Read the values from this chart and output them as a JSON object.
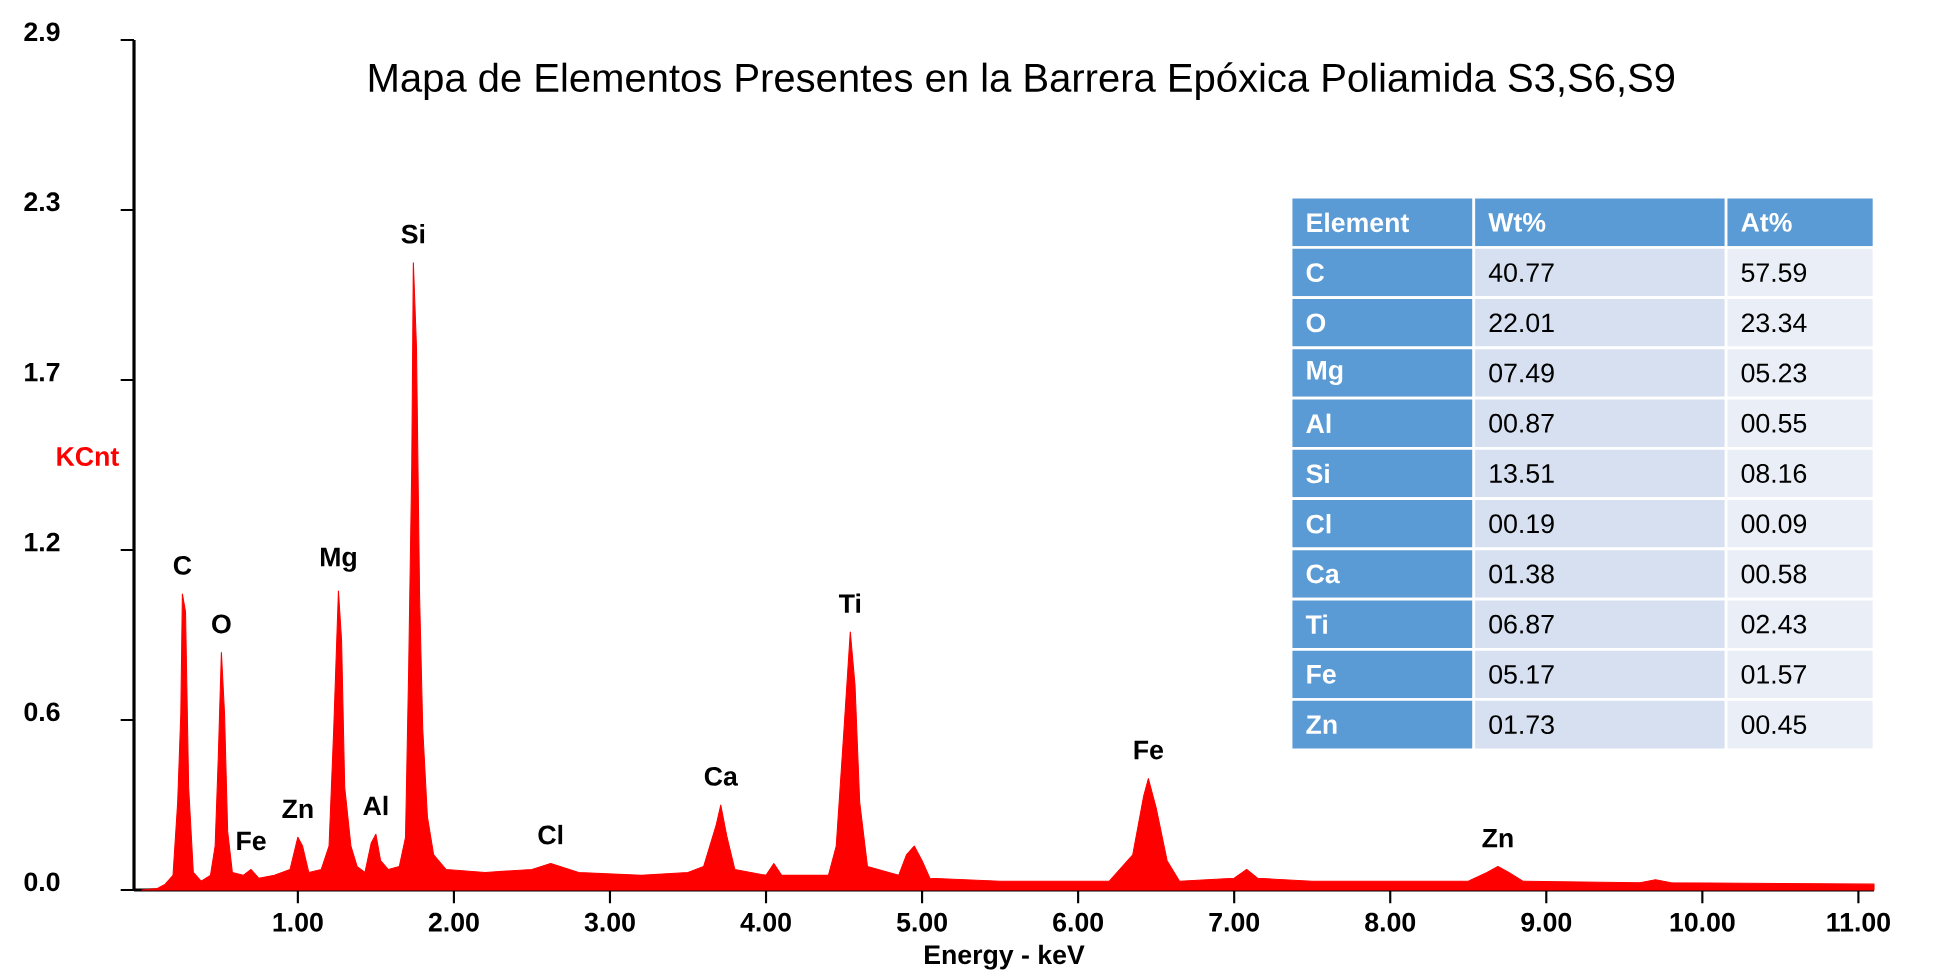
{
  "chart_data": {
    "type": "area",
    "title": "Mapa de Elementos Presentes en la Barrera Epóxica Poliamida S3,S6,S9",
    "xlabel": "Energy - keV",
    "ylabel": "KCnt",
    "color": "#ff0000",
    "x": [
      0,
      0.1,
      0.15,
      0.2,
      0.23,
      0.25,
      0.26,
      0.28,
      0.3,
      0.33,
      0.38,
      0.44,
      0.47,
      0.49,
      0.51,
      0.53,
      0.55,
      0.58,
      0.65,
      0.7,
      0.75,
      0.85,
      0.95,
      1.0,
      1.03,
      1.07,
      1.15,
      1.2,
      1.23,
      1.26,
      1.28,
      1.3,
      1.34,
      1.38,
      1.43,
      1.47,
      1.5,
      1.53,
      1.58,
      1.65,
      1.69,
      1.71,
      1.73,
      1.74,
      1.76,
      1.78,
      1.8,
      1.83,
      1.87,
      1.95,
      2.2,
      2.5,
      2.62,
      2.8,
      3.2,
      3.5,
      3.6,
      3.68,
      3.71,
      3.75,
      3.8,
      4.0,
      4.05,
      4.1,
      4.4,
      4.45,
      4.5,
      4.54,
      4.57,
      4.6,
      4.65,
      4.85,
      4.9,
      4.95,
      5.0,
      5.05,
      5.5,
      6.2,
      6.35,
      6.42,
      6.45,
      6.5,
      6.57,
      6.65,
      7.0,
      7.08,
      7.15,
      7.5,
      8.5,
      8.62,
      8.69,
      8.76,
      8.85,
      9.6,
      9.7,
      9.8,
      11.1
    ],
    "values": [
      0,
      0.005,
      0.02,
      0.05,
      0.3,
      0.6,
      1.01,
      0.95,
      0.35,
      0.06,
      0.03,
      0.05,
      0.15,
      0.45,
      0.81,
      0.6,
      0.2,
      0.06,
      0.05,
      0.07,
      0.04,
      0.05,
      0.07,
      0.18,
      0.15,
      0.06,
      0.07,
      0.15,
      0.55,
      1.02,
      0.85,
      0.35,
      0.15,
      0.08,
      0.06,
      0.16,
      0.19,
      0.1,
      0.07,
      0.08,
      0.18,
      0.75,
      1.45,
      2.14,
      1.85,
      1.0,
      0.55,
      0.25,
      0.12,
      0.07,
      0.06,
      0.07,
      0.09,
      0.06,
      0.05,
      0.06,
      0.08,
      0.22,
      0.29,
      0.18,
      0.07,
      0.05,
      0.09,
      0.05,
      0.05,
      0.15,
      0.55,
      0.88,
      0.7,
      0.3,
      0.08,
      0.05,
      0.12,
      0.15,
      0.1,
      0.04,
      0.03,
      0.03,
      0.12,
      0.32,
      0.38,
      0.28,
      0.1,
      0.03,
      0.04,
      0.07,
      0.04,
      0.03,
      0.03,
      0.06,
      0.08,
      0.06,
      0.03,
      0.025,
      0.035,
      0.025,
      0.02
    ],
    "xlim": [
      -0.05,
      11.1
    ],
    "ylim": [
      0,
      2.9
    ],
    "xticks": [
      {
        "value": 1,
        "label": "1.00"
      },
      {
        "value": 2,
        "label": "2.00"
      },
      {
        "value": 3,
        "label": "3.00"
      },
      {
        "value": 4,
        "label": "4.00"
      },
      {
        "value": 5,
        "label": "5.00"
      },
      {
        "value": 6,
        "label": "6.00"
      },
      {
        "value": 7,
        "label": "7.00"
      },
      {
        "value": 8,
        "label": "8.00"
      },
      {
        "value": 9,
        "label": "9.00"
      },
      {
        "value": 10,
        "label": "10.00"
      },
      {
        "value": 11,
        "label": "11.00"
      }
    ],
    "yticks": [
      {
        "value": 0,
        "label": "0.0"
      },
      {
        "value": 0.58,
        "label": "0.6"
      },
      {
        "value": 1.16,
        "label": "1.2"
      },
      {
        "value": 1.74,
        "label": "1.7"
      },
      {
        "value": 2.32,
        "label": "2.3"
      },
      {
        "value": 2.9,
        "label": "2.9"
      }
    ],
    "annotations": [
      {
        "text": "C",
        "x": 0.26,
        "y": 1.01
      },
      {
        "text": "O",
        "x": 0.51,
        "y": 0.81
      },
      {
        "text": "Fe",
        "x": 0.7,
        "y": 0.07
      },
      {
        "text": "Zn",
        "x": 1.0,
        "y": 0.18
      },
      {
        "text": "Mg",
        "x": 1.26,
        "y": 1.02
      },
      {
        "text": "Al",
        "x": 1.5,
        "y": 0.19
      },
      {
        "text": "Si",
        "x": 1.74,
        "y": 2.14
      },
      {
        "text": "Cl",
        "x": 2.62,
        "y": 0.09
      },
      {
        "text": "Ca",
        "x": 3.71,
        "y": 0.29
      },
      {
        "text": "Ti",
        "x": 4.54,
        "y": 0.88
      },
      {
        "text": "Fe",
        "x": 6.45,
        "y": 0.38
      },
      {
        "text": "Zn",
        "x": 8.69,
        "y": 0.08
      },
      "Element",
      "Wt%",
      "At%",
      "C",
      "40.77",
      "57.59",
      "O",
      "22.01",
      "23.34",
      "Mg",
      "07.49",
      "05.23",
      "Al",
      "00.87",
      "00.55",
      "Si",
      "13.51",
      "08.16",
      "Cl",
      "00.19",
      "00.09",
      "Ca",
      "01.38",
      "00.58",
      "Ti",
      "06.87",
      "02.43",
      "Fe",
      "05.17",
      "01.57",
      "Zn",
      "01.73",
      "00.45"
    ]
  }
}
